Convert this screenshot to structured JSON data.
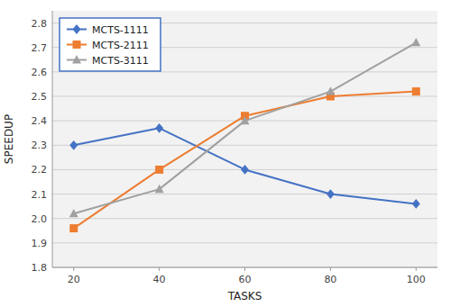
{
  "chart_data": {
    "type": "line",
    "x": [
      20,
      40,
      60,
      80,
      100
    ],
    "series": [
      {
        "name": "MCTS-1111",
        "color": "#4472C4",
        "marker": "diamond",
        "values": [
          2.3,
          2.37,
          2.2,
          2.1,
          2.06
        ]
      },
      {
        "name": "MCTS-2111",
        "color": "#ED7D31",
        "marker": "square",
        "values": [
          1.96,
          2.2,
          2.42,
          2.5,
          2.52
        ]
      },
      {
        "name": "MCTS-3111",
        "color": "#A0A0A0",
        "marker": "triangle",
        "values": [
          2.02,
          2.12,
          2.4,
          2.52,
          2.72
        ]
      }
    ],
    "x_label": "TASKS",
    "y_label": "SPEEDUP",
    "xlim": [
      15,
      105
    ],
    "xticks": [
      20,
      40,
      60,
      80,
      100
    ],
    "ylim": [
      1.8,
      2.85
    ],
    "yticks": [
      1.8,
      1.9,
      {
        "value": 2.0,
        "label": "2.0"
      },
      2.1,
      2.2,
      2.3,
      2.4,
      2.5,
      2.6,
      2.7,
      2.8
    ],
    "grid": true,
    "legend": "upper left"
  }
}
